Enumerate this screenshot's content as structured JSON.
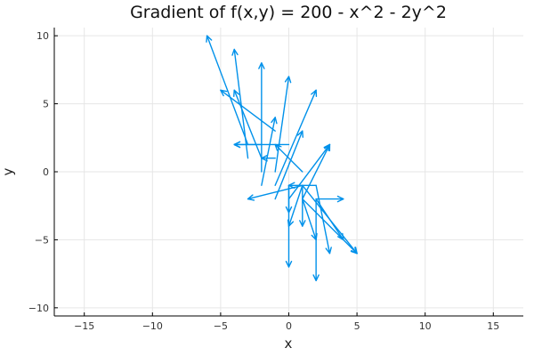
{
  "chart_data": {
    "type": "quiver",
    "title": "Gradient of f(x,y) = 200 - x^2 - 2y^2",
    "xlabel": "x",
    "ylabel": "y",
    "xlim": [
      -17.2,
      17.2
    ],
    "ylim": [
      -10.6,
      10.6
    ],
    "xticks": [
      -15,
      -10,
      -5,
      0,
      5,
      10,
      15
    ],
    "xtick_labels": [
      "−15",
      "−10",
      "−5",
      "0",
      "5",
      "10",
      "15"
    ],
    "yticks": [
      -10,
      -5,
      0,
      5,
      10
    ],
    "ytick_labels": [
      "−10",
      "−5",
      "0",
      "5",
      "10"
    ],
    "grid": true,
    "legend": false,
    "arrow_color": "#0091ea",
    "arrows": [
      {
        "x": -3,
        "y": 2,
        "u": -3,
        "v": 8
      },
      {
        "x": -3,
        "y": 1,
        "u": -1,
        "v": 8
      },
      {
        "x": -2,
        "y": 0,
        "u": 0,
        "v": 8
      },
      {
        "x": -1,
        "y": 0,
        "u": 1,
        "v": 7
      },
      {
        "x": -2,
        "y": 2,
        "u": -2,
        "v": 0
      },
      {
        "x": -1,
        "y": 1,
        "u": -1,
        "v": 0
      },
      {
        "x": -2,
        "y": 1,
        "u": -2,
        "v": 5
      },
      {
        "x": -1,
        "y": -1,
        "u": 3,
        "v": 7
      },
      {
        "x": -1,
        "y": 3,
        "u": -4,
        "v": 3
      },
      {
        "x": -2,
        "y": -1,
        "u": 1,
        "v": 5
      },
      {
        "x": -1,
        "y": -2,
        "u": 2,
        "v": 5
      },
      {
        "x": 0,
        "y": 2,
        "u": -4,
        "v": 0
      },
      {
        "x": 1,
        "y": -1,
        "u": -4,
        "v": -1
      },
      {
        "x": 0,
        "y": -2,
        "u": 3,
        "v": 4
      },
      {
        "x": 1,
        "y": -2,
        "u": 2,
        "v": 4
      },
      {
        "x": 1,
        "y": 0,
        "u": -2,
        "v": 2
      },
      {
        "x": 0,
        "y": -1,
        "u": 0,
        "v": -2
      },
      {
        "x": 1,
        "y": -1,
        "u": 0,
        "v": -3
      },
      {
        "x": 0,
        "y": -1,
        "u": 0,
        "v": -6
      },
      {
        "x": 2,
        "y": -2,
        "u": 2,
        "v": 0
      },
      {
        "x": 2,
        "y": -1,
        "u": -2,
        "v": 0
      },
      {
        "x": 1,
        "y": -1,
        "u": -1,
        "v": -3
      },
      {
        "x": 2,
        "y": -2,
        "u": 0,
        "v": -6
      },
      {
        "x": 1,
        "y": -2,
        "u": 1,
        "v": -3
      },
      {
        "x": 1,
        "y": -1,
        "u": 4,
        "v": -5
      },
      {
        "x": 1,
        "y": -2,
        "u": 4,
        "v": -4
      },
      {
        "x": 2,
        "y": -2,
        "u": 2,
        "v": -3
      },
      {
        "x": 2,
        "y": -1,
        "u": 1,
        "v": -5
      }
    ]
  }
}
